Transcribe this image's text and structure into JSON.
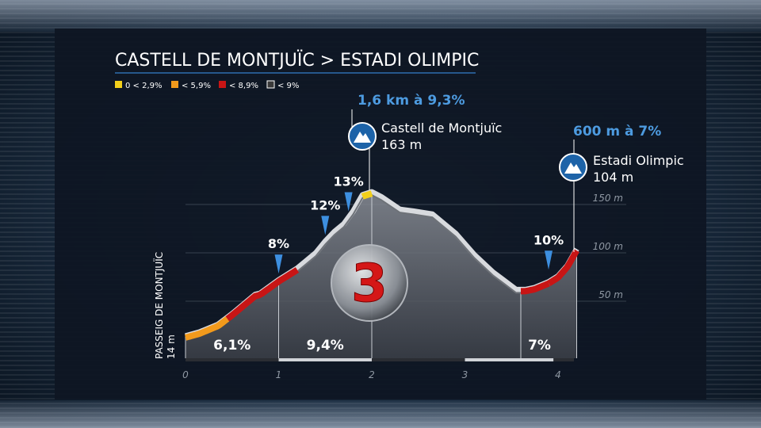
{
  "title": "CASTELL DE MONTJUÏC > ESTADI OLIMPIC",
  "legend": [
    {
      "label": "0 < 2,9%",
      "color": "#f2cf1a"
    },
    {
      "label": "< 5,9%",
      "color": "#f29a1c"
    },
    {
      "label": "< 8,9%",
      "color": "#c81515"
    },
    {
      "label": "< 9%",
      "color": "#3a3a3a"
    }
  ],
  "climb": {
    "label": "1,6 km à 9,3%",
    "summit_name": "Castell de Montjuïc",
    "summit_alt": "163 m",
    "category": "3",
    "icon": "mountain-icon"
  },
  "finish": {
    "label": "600 m à 7%",
    "name": "Estadi Olimpic",
    "alt": "104 m",
    "icon": "mountain-icon"
  },
  "start": {
    "name": "PASSEIG DE MONTJUÏC",
    "alt": "14 m"
  },
  "chart_data": {
    "type": "area",
    "xlabel": "",
    "ylabel": "",
    "xlim": [
      0,
      4.2
    ],
    "ylim": [
      0,
      165
    ],
    "x_ticks": [
      "0",
      "1",
      "2",
      "3",
      "4"
    ],
    "y_ticks": [
      {
        "value": 50,
        "label": "50 m"
      },
      {
        "value": 100,
        "label": "100 m"
      },
      {
        "value": 150,
        "label": "150 m"
      }
    ],
    "series": [
      {
        "x": [
          0,
          0.15,
          0.35,
          0.5,
          0.75,
          0.8,
          1.0,
          1.2,
          1.4,
          1.5,
          1.6,
          1.7,
          1.8,
          1.9,
          2.0,
          2.1,
          2.3,
          2.45,
          2.65,
          2.9,
          3.1,
          3.3,
          3.55,
          3.65,
          3.75,
          3.9,
          4.0,
          4.1,
          4.2
        ],
        "y": [
          14,
          18,
          26,
          37,
          57,
          58,
          72,
          84,
          100,
          112,
          122,
          130,
          143,
          160,
          163,
          158,
          145,
          143,
          140,
          120,
          98,
          80,
          62,
          62,
          64,
          70,
          76,
          87,
          104
        ]
      }
    ],
    "gradient_segments": [
      {
        "from": 0,
        "to": 0.45,
        "class": "< 5,9%"
      },
      {
        "from": 0.45,
        "to": 1.2,
        "class": "< 8,9%"
      },
      {
        "from": 1.9,
        "to": 2.0,
        "class": "0 < 2,9%"
      },
      {
        "from": 3.6,
        "to": 3.9,
        "class": "< 8,9%"
      },
      {
        "from": 3.9,
        "to": 4.2,
        "class": "< 8,9%"
      }
    ],
    "sections": [
      {
        "from": 0,
        "to": 1,
        "label": "6,1%"
      },
      {
        "from": 1,
        "to": 2,
        "label": "9,4%"
      },
      {
        "from": 3.6,
        "to": 4.2,
        "label": "7%"
      }
    ],
    "markers": [
      {
        "x": 1.0,
        "label": "8%"
      },
      {
        "x": 1.5,
        "label": "12%"
      },
      {
        "x": 1.75,
        "label": "13%"
      },
      {
        "x": 4.0,
        "label": "10%"
      }
    ],
    "grid": true
  }
}
